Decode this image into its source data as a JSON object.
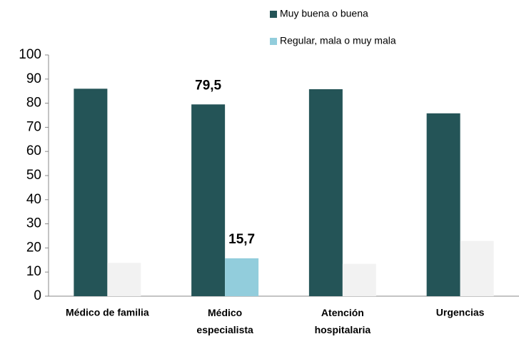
{
  "chart_data": {
    "type": "bar",
    "categories": [
      "Médico de familia",
      "Médico especialista",
      "Atención hospitalaria",
      "Urgencias"
    ],
    "series": [
      {
        "name": "Muy buena o buena",
        "color": "#245457",
        "values": [
          86,
          79.5,
          85.8,
          75.8
        ],
        "value_labels": [
          null,
          "79,5",
          null,
          null
        ]
      },
      {
        "name": "Regular, mala o muy mala",
        "color": "#92cddc",
        "colors": [
          "#f2f2f2",
          "#92cddc",
          "#f2f2f2",
          "#f2f2f2"
        ],
        "values": [
          13.8,
          15.7,
          13.4,
          22.9
        ],
        "value_labels": [
          null,
          "15,7",
          null,
          null
        ]
      }
    ],
    "ylim": [
      0,
      100
    ],
    "yticks": [
      0,
      10,
      20,
      30,
      40,
      50,
      60,
      70,
      80,
      90,
      100
    ],
    "grid": false
  }
}
